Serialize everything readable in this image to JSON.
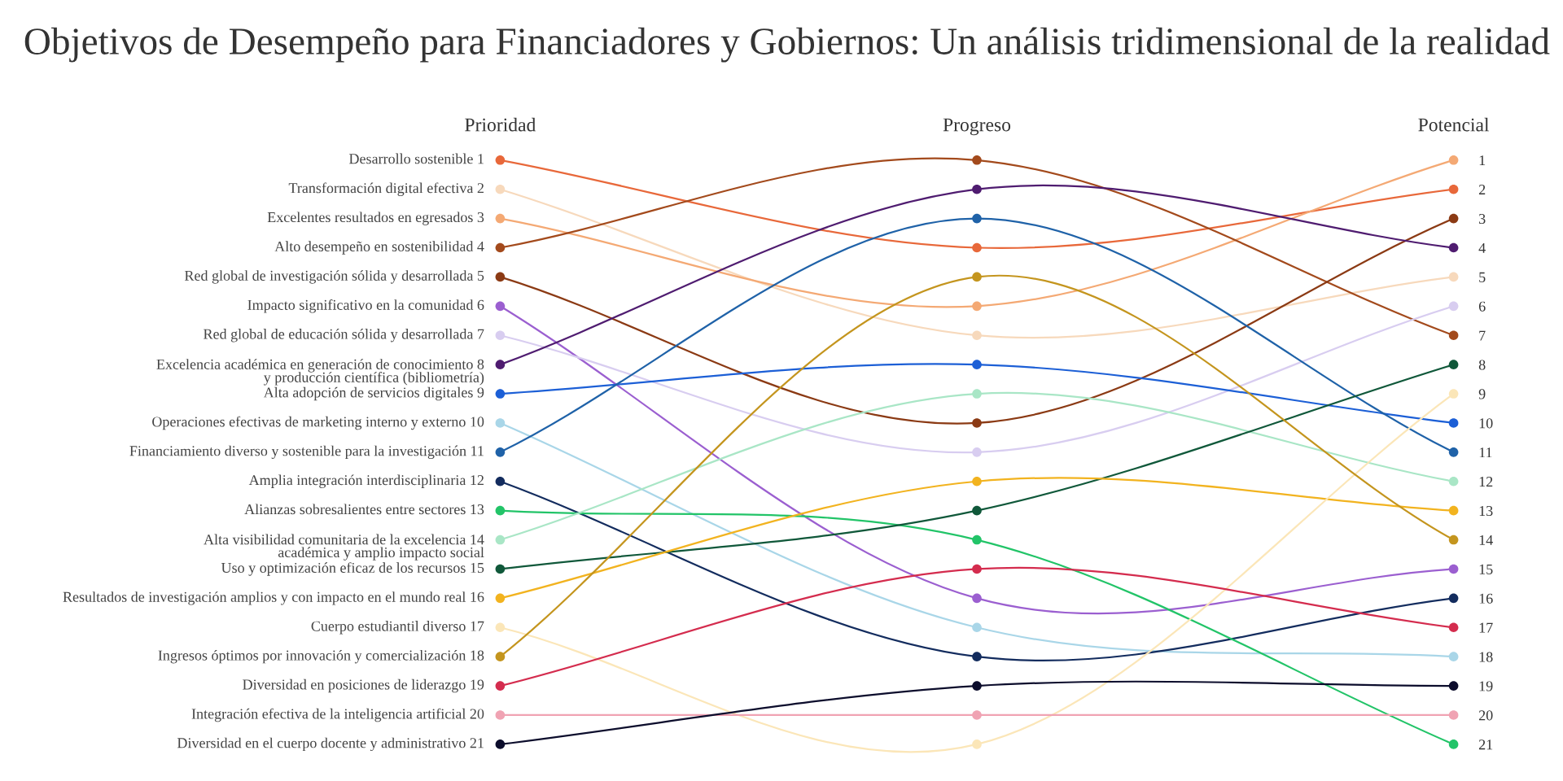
{
  "chart_data": {
    "type": "line",
    "title": "Objetivos de Desempeño para Financiadores y Gobiernos: Un análisis tridimensional de la realidad",
    "categories": [
      "Prioridad",
      "Progreso",
      "Potencial"
    ],
    "ylim": [
      21,
      1
    ],
    "yticks": [
      1,
      2,
      3,
      4,
      5,
      6,
      7,
      8,
      9,
      10,
      11,
      12,
      13,
      14,
      15,
      16,
      17,
      18,
      19,
      20,
      21
    ],
    "marker": "circle",
    "line_style": "solid",
    "series": [
      {
        "name": "Desarrollo sostenible 1",
        "color": "#e8683a",
        "values": [
          1,
          4,
          2
        ]
      },
      {
        "name": "Transformación digital efectiva 2",
        "color": "#f7d9bc",
        "values": [
          2,
          7,
          5
        ]
      },
      {
        "name": "Excelentes resultados en egresados 3",
        "color": "#f4a974",
        "values": [
          3,
          6,
          1
        ]
      },
      {
        "name": "Alto desempeño en sostenibilidad 4",
        "color": "#a34a1c",
        "values": [
          4,
          1,
          7
        ]
      },
      {
        "name": "Red global de investigación sólida y desarrollada 5",
        "color": "#8b3a14",
        "values": [
          5,
          10,
          3
        ]
      },
      {
        "name": "Impacto significativo en la comunidad 6",
        "color": "#9b5fd0",
        "values": [
          6,
          16,
          15
        ]
      },
      {
        "name": "Red global de educación sólida y desarrollada 7",
        "color": "#d8cdf0",
        "values": [
          7,
          11,
          6
        ]
      },
      {
        "name": "Excelencia académica en generación de conocimiento 8\ny producción científica (bibliometría)",
        "color": "#4f1c70",
        "values": [
          8,
          2,
          4
        ]
      },
      {
        "name": "Alta adopción de servicios digitales 9",
        "color": "#1c5fd6",
        "values": [
          9,
          8,
          10
        ]
      },
      {
        "name": "Operaciones efectivas de marketing interno y externo 10",
        "color": "#a9d6e8",
        "values": [
          10,
          17,
          18
        ]
      },
      {
        "name": "Financiamiento diverso y sostenible para la investigación 11",
        "color": "#1f62a8",
        "values": [
          11,
          3,
          11
        ]
      },
      {
        "name": "Amplia integración interdisciplinaria 12",
        "color": "#132c5e",
        "values": [
          12,
          18,
          16
        ]
      },
      {
        "name": "Alianzas sobresalientes entre sectores 13",
        "color": "#22c468",
        "values": [
          13,
          14,
          21
        ]
      },
      {
        "name": "Alta visibilidad comunitaria de la excelencia 14\nacadémica y amplio impacto social",
        "color": "#a9e6c6",
        "values": [
          14,
          9,
          12
        ]
      },
      {
        "name": "Uso y optimización eficaz de los recursos 15",
        "color": "#10583a",
        "values": [
          15,
          13,
          8
        ]
      },
      {
        "name": "Resultados de investigación amplios y con impacto en el mundo real 16",
        "color": "#f2b31f",
        "values": [
          16,
          12,
          13
        ]
      },
      {
        "name": "Cuerpo estudiantil diverso 17",
        "color": "#fbe6b8",
        "values": [
          17,
          21,
          9
        ]
      },
      {
        "name": "Ingresos óptimos por innovación y comercialización 18",
        "color": "#c4951e",
        "values": [
          18,
          5,
          14
        ]
      },
      {
        "name": "Diversidad en posiciones de liderazgo 19",
        "color": "#d42c4e",
        "values": [
          19,
          15,
          17
        ]
      },
      {
        "name": "Integración efectiva de la inteligencia artificial 20",
        "color": "#f0a3b3",
        "values": [
          20,
          20,
          20
        ]
      },
      {
        "name": "Diversidad en el cuerpo docente y administrativo 21",
        "color": "#0c0d2c",
        "values": [
          21,
          19,
          19
        ]
      }
    ]
  }
}
